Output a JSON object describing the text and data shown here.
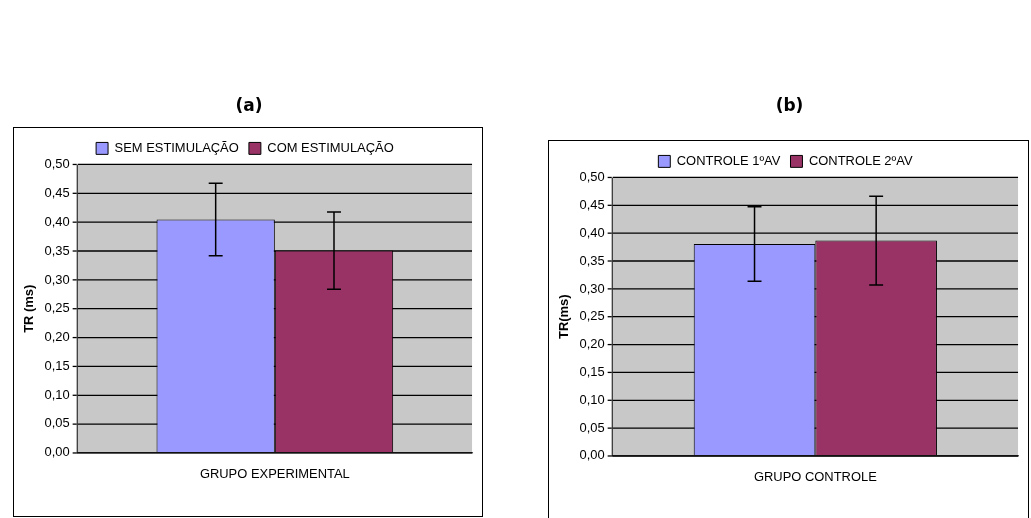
{
  "chart_data": [
    {
      "type": "bar",
      "title": "(a)",
      "ylabel": "TR (ms)",
      "categories": [
        "GRUPO EXPERIMENTAL"
      ],
      "series": [
        {
          "name": "SEM ESTIMULAÇÃO",
          "color": "#9999ff",
          "values": [
            0.405
          ],
          "errors": [
            0.063
          ]
        },
        {
          "name": "COM ESTIMULAÇÃO",
          "color": "#993366",
          "values": [
            0.351
          ],
          "errors": [
            0.067
          ]
        }
      ],
      "ylim": [
        0,
        0.5
      ],
      "yticks": [
        {
          "value": 0,
          "label": "0,00"
        },
        {
          "value": 0.05,
          "label": "0,05"
        },
        {
          "value": 0.1,
          "label": "0,10"
        },
        {
          "value": 0.15,
          "label": "0,15"
        },
        {
          "value": 0.2,
          "label": "0,20"
        },
        {
          "value": 0.25,
          "label": "0,25"
        },
        {
          "value": 0.3,
          "label": "0,30"
        },
        {
          "value": 0.35,
          "label": "0,35"
        },
        {
          "value": 0.4,
          "label": "0,40"
        },
        {
          "value": 0.45,
          "label": "0,45"
        },
        {
          "value": 0.5,
          "label": "0,50"
        }
      ],
      "grid": "y",
      "legend": "top"
    },
    {
      "type": "bar",
      "title": "(b)",
      "ylabel": "TR(ms)",
      "categories": [
        "GRUPO CONTROLE"
      ],
      "series": [
        {
          "name": "CONTROLE 1ºAV",
          "color": "#9999ff",
          "values": [
            0.381
          ],
          "errors": [
            0.067
          ]
        },
        {
          "name": "CONTROLE 2ºAV",
          "color": "#993366",
          "values": [
            0.387
          ],
          "errors": [
            0.08
          ]
        }
      ],
      "ylim": [
        0,
        0.5
      ],
      "yticks": [
        {
          "value": 0,
          "label": "0,00"
        },
        {
          "value": 0.05,
          "label": "0,05"
        },
        {
          "value": 0.1,
          "label": "0,10"
        },
        {
          "value": 0.15,
          "label": "0,15"
        },
        {
          "value": 0.2,
          "label": "0,20"
        },
        {
          "value": 0.25,
          "label": "0,25"
        },
        {
          "value": 0.3,
          "label": "0,30"
        },
        {
          "value": 0.35,
          "label": "0,35"
        },
        {
          "value": 0.4,
          "label": "0,40"
        },
        {
          "value": 0.45,
          "label": "0,45"
        },
        {
          "value": 0.5,
          "label": "0,50"
        }
      ],
      "grid": "y",
      "legend": "top"
    }
  ]
}
